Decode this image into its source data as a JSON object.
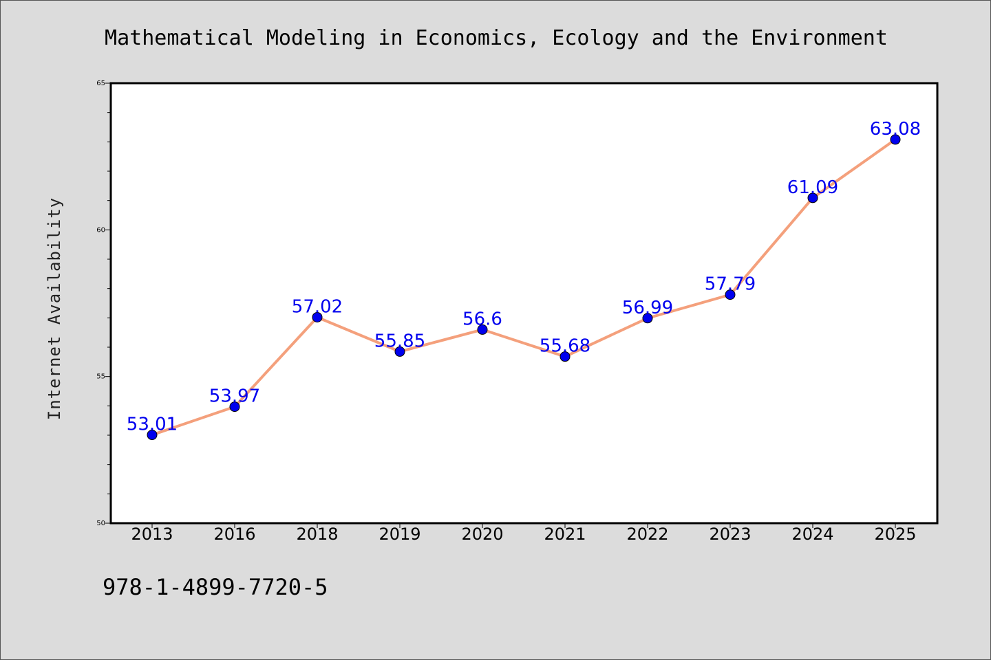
{
  "chart_data": {
    "type": "line",
    "title": "Mathematical Modeling in Economics, Ecology and the Environment",
    "xlabel": "",
    "ylabel": "Internet Availability",
    "categories": [
      "2013",
      "2016",
      "2018",
      "2019",
      "2020",
      "2021",
      "2022",
      "2023",
      "2024",
      "2025"
    ],
    "series": [
      {
        "values": [
          53.01,
          53.97,
          57.02,
          55.85,
          56.6,
          55.68,
          56.99,
          57.79,
          61.09,
          63.08
        ],
        "labels": [
          "53.01",
          "53.97",
          "57.02",
          "55.85",
          "56.6",
          "55.68",
          "56.99",
          "57.79",
          "61.09",
          "63.08"
        ],
        "line_color": "#f4a07c",
        "marker_color": "#0000ee",
        "label_color": "#0000ee"
      }
    ],
    "ylim": [
      50,
      65
    ],
    "y_ticks": [
      "50",
      "55",
      "60",
      "65"
    ],
    "grid": false,
    "legend": "none"
  },
  "footer": {
    "isbn": "978-1-4899-7720-5"
  },
  "colors": {
    "background": "#dcdcdc",
    "plot_background": "#ffffff",
    "axis": "#000000"
  }
}
